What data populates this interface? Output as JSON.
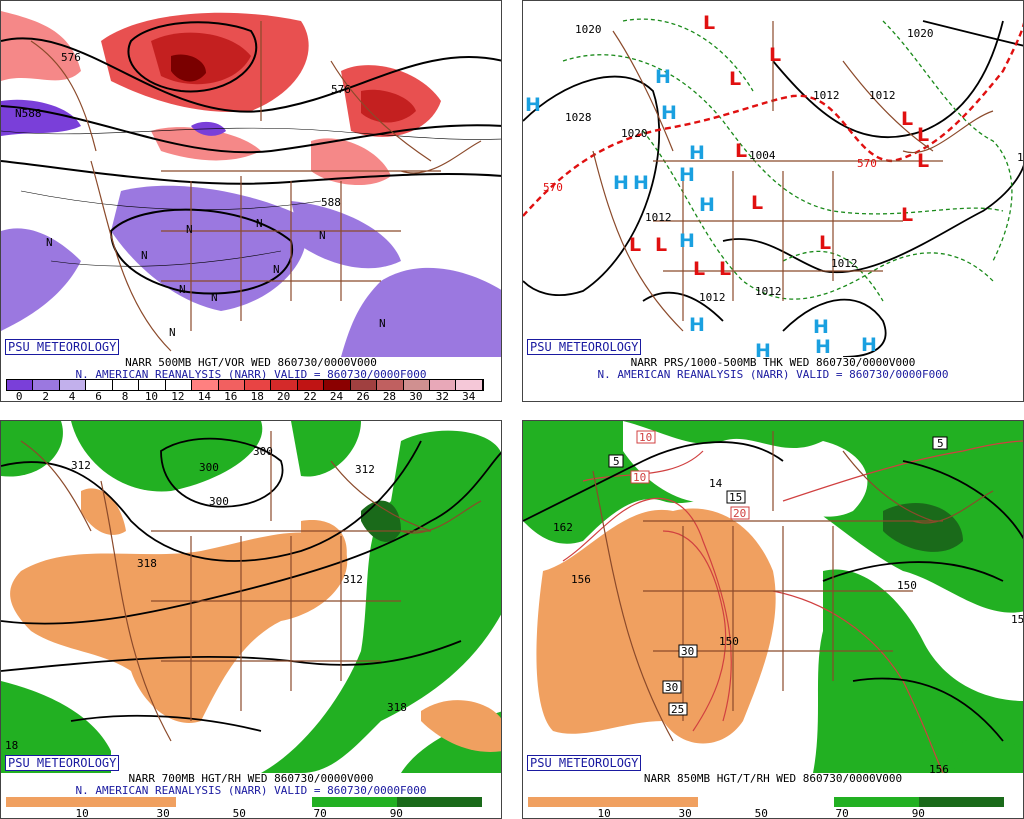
{
  "panels": {
    "p1": {
      "badge": "PSU METEOROLOGY",
      "caption1": "NARR 500MB HGT/VOR WED 860730/0000V000",
      "caption2": "N. AMERICAN REANALYSIS (NARR) VALID = 860730/0000F000",
      "scale_labels": [
        "0",
        "2",
        "4",
        "6",
        "8",
        "10",
        "12",
        "14",
        "16",
        "18",
        "20",
        "22",
        "24",
        "26",
        "28",
        "30",
        "32",
        "34"
      ],
      "scale_colors": [
        "#7a3fd9",
        "#9b78e0",
        "#c2b0ec",
        "#ffffff",
        "#ffffff",
        "#ffffff",
        "#ffffff",
        "#ff8080",
        "#f26060",
        "#e84444",
        "#d42a2a",
        "#c01414",
        "#8b0000",
        "#a04040",
        "#c06060",
        "#d09090",
        "#e8a8b8",
        "#f5c8d8"
      ],
      "contour_labels": [
        "576",
        "N588",
        "576",
        "588"
      ],
      "n_labels": [
        "N",
        "N",
        "N",
        "N",
        "N",
        "N",
        "N",
        "N",
        "N",
        "N"
      ]
    },
    "p2": {
      "badge": "PSU METEOROLOGY",
      "caption1": "NARR PRS/1000-500MB THK WED 860730/0000V000",
      "caption2": "N. AMERICAN REANALYSIS (NARR) VALID = 860730/0000F000",
      "isobar_labels": [
        "1020",
        "1020",
        "1028",
        "1020",
        "1012",
        "1012",
        "1004",
        "1012",
        "1012",
        "1012",
        "1012",
        "570",
        "570",
        "1"
      ],
      "high_label": "H",
      "low_label": "L"
    },
    "p3": {
      "badge": "PSU METEOROLOGY",
      "caption1": "NARR 700MB HGT/RH WED 860730/0000V000",
      "caption2": "N. AMERICAN REANALYSIS (NARR) VALID = 860730/0000F000",
      "scale_labels": [
        "10",
        "30",
        "50",
        "70",
        "90"
      ],
      "contour_labels": [
        "312",
        "300",
        "300",
        "312",
        "300",
        "318",
        "312",
        "318",
        "18"
      ]
    },
    "p4": {
      "badge": "PSU METEOROLOGY",
      "caption1": "NARR 850MB HGT/T/RH WED 860730/0000V000",
      "scale_labels": [
        "10",
        "30",
        "50",
        "70",
        "90"
      ],
      "contour_labels": [
        "162",
        "156",
        "150",
        "150",
        "156",
        "15",
        "14"
      ],
      "temp_boxes": [
        "10",
        "5",
        "10",
        "15",
        "20",
        "30",
        "30",
        "25",
        "5"
      ]
    }
  },
  "colors": {
    "state_lines": "#8b4a2b",
    "contours": "#000000",
    "high": "#1aa0e0",
    "low": "#e01010",
    "thickness_green": "#1a8a1a",
    "thickness_red": "#e01010",
    "rh_dry": "#f0a060",
    "rh_moist": "#22b022",
    "rh_very_moist": "#1a6a1a",
    "temp_contour": "#d04040"
  }
}
